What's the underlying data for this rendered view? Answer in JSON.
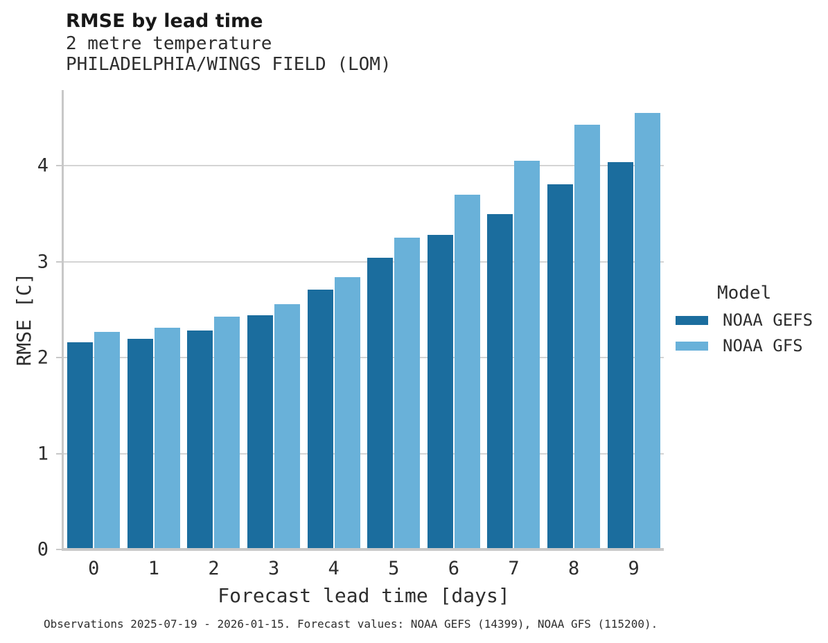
{
  "header": {
    "title": "RMSE by lead time",
    "subtitle_line1": "2 metre temperature",
    "subtitle_line2": "PHILADELPHIA/WINGS FIELD (LOM)"
  },
  "chart_data": {
    "type": "bar",
    "title": "RMSE by lead time",
    "subtitle": [
      "2 metre temperature",
      "PHILADELPHIA/WINGS FIELD (LOM)"
    ],
    "categories": [
      "0",
      "1",
      "2",
      "3",
      "4",
      "5",
      "6",
      "7",
      "8",
      "9"
    ],
    "series": [
      {
        "name": "NOAA GEFS",
        "color": "#1b6d9e",
        "values": [
          2.16,
          2.2,
          2.28,
          2.44,
          2.71,
          3.04,
          3.28,
          3.5,
          3.81,
          4.04
        ]
      },
      {
        "name": "NOAA GFS",
        "color": "#69b1d9",
        "values": [
          2.27,
          2.31,
          2.43,
          2.56,
          2.84,
          3.25,
          3.7,
          4.05,
          4.43,
          4.55
        ]
      }
    ],
    "xlabel": "Forecast lead time [days]",
    "ylabel": "RMSE [C]",
    "ylim": [
      0,
      4.79
    ],
    "yticks": [
      0,
      1,
      2,
      3,
      4
    ],
    "grid": "horizontal-only",
    "legend_title": "Model",
    "legend_position": "right-middle",
    "colors": {
      "gridline": "#d4d4d4",
      "axis_line": "#c8c8c8",
      "text": "#2e2e2e"
    }
  },
  "caption": "Observations 2025-07-19 - 2026-01-15. Forecast values: NOAA GEFS (14399), NOAA GFS (115200)."
}
